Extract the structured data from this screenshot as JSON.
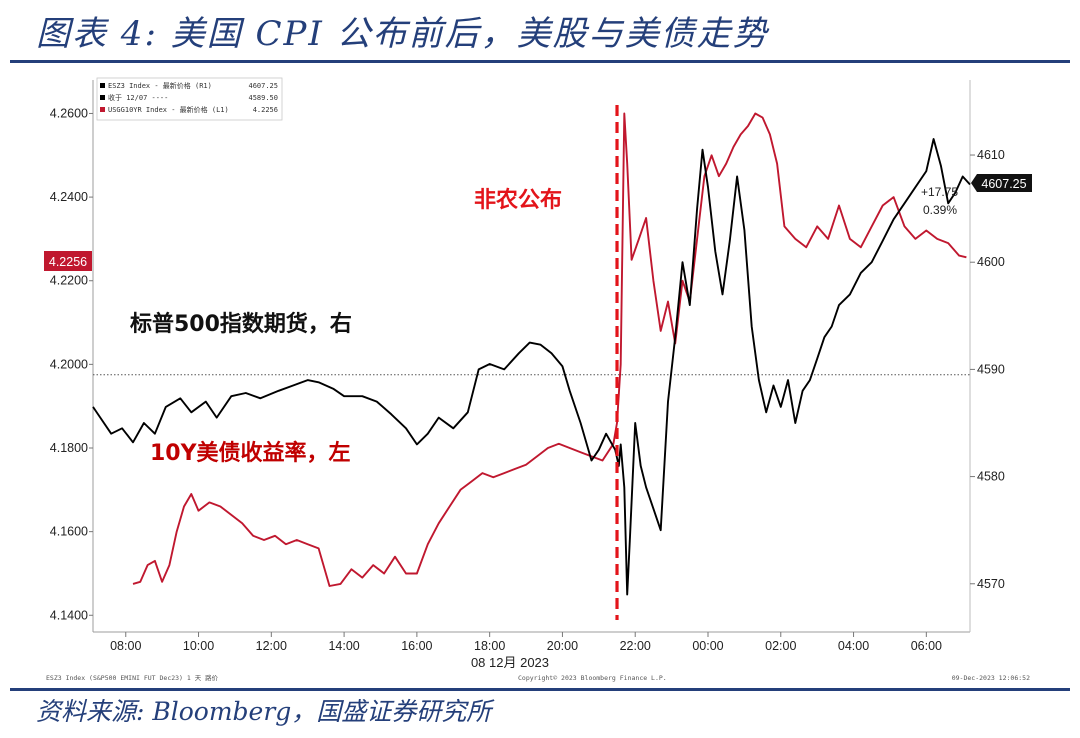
{
  "title": "图表 4:  美国 CPI 公布前后，美股与美债走势",
  "source": "资料来源:  Bloomberg，国盛证券研究所",
  "colors": {
    "navy": "#243f7a",
    "es": "#000000",
    "yield": "#c0182f",
    "marker": "#e3141a"
  },
  "legend": {
    "rows": [
      {
        "label": "ESZ3 Index - 最新价格 (R1)",
        "value": "4607.25",
        "color": "#000000"
      },
      {
        "label": "收于 12/07 ----",
        "value": "4589.50",
        "color": "#000000"
      },
      {
        "label": "USGG10YR Index - 最新价格 (L1)",
        "value": "4.2256",
        "color": "#c0182f"
      }
    ]
  },
  "annotations": {
    "es_label": "标普500指数期货，右",
    "yield_label": "10Y美债收益率，左",
    "event_label": "非农公布",
    "change_abs": "+17.75",
    "change_pct": "0.39%",
    "last_es": "4607.25",
    "last_yield": "4.2256"
  },
  "footer": {
    "left": "ESZ3 Index (S&P500 EMINI FUT  Dec23) 1 天  路价",
    "center": "Copyright© 2023 Bloomberg Finance L.P.",
    "right": "09-Dec-2023 12:06:52"
  },
  "chart_data": {
    "type": "line",
    "xlabel": "08 12月 2023",
    "x_ticks": [
      "08:00",
      "10:00",
      "12:00",
      "14:00",
      "16:00",
      "18:00",
      "20:00",
      "22:00",
      "00:00",
      "02:00",
      "04:00",
      "06:00"
    ],
    "left_axis": {
      "ticks": [
        "4.2600",
        "4.2400",
        "4.2200",
        "4.2000",
        "4.1800",
        "4.1600",
        "4.1400"
      ],
      "ylim": [
        4.136,
        4.268
      ]
    },
    "right_axis": {
      "ticks": [
        "4610",
        "4600",
        "4590",
        "4580",
        "4570"
      ],
      "ylim": [
        4565.5,
        4617
      ]
    },
    "reference_line": {
      "axis": "right",
      "value": 4589.5,
      "style": "dotted"
    },
    "event_marker": {
      "x": "21:30",
      "label": "非农公布"
    },
    "x_hours_range": [
      7.1,
      31.2
    ],
    "series": [
      {
        "name": "ESZ3 Index",
        "axis": "right",
        "points": [
          [
            7.1,
            4586.5
          ],
          [
            7.3,
            4585.5
          ],
          [
            7.6,
            4584.0
          ],
          [
            7.9,
            4584.5
          ],
          [
            8.2,
            4583.2
          ],
          [
            8.5,
            4585.0
          ],
          [
            8.8,
            4584.0
          ],
          [
            9.1,
            4586.5
          ],
          [
            9.5,
            4587.3
          ],
          [
            9.8,
            4586.0
          ],
          [
            10.2,
            4587.0
          ],
          [
            10.5,
            4585.5
          ],
          [
            10.9,
            4587.5
          ],
          [
            11.3,
            4587.8
          ],
          [
            11.7,
            4587.3
          ],
          [
            12.2,
            4588.0
          ],
          [
            12.6,
            4588.5
          ],
          [
            13.0,
            4589.0
          ],
          [
            13.3,
            4588.8
          ],
          [
            13.7,
            4588.2
          ],
          [
            14.0,
            4587.5
          ],
          [
            14.5,
            4587.5
          ],
          [
            14.9,
            4587.0
          ],
          [
            15.3,
            4585.8
          ],
          [
            15.7,
            4584.5
          ],
          [
            16.0,
            4583.0
          ],
          [
            16.3,
            4584.0
          ],
          [
            16.6,
            4585.5
          ],
          [
            17.0,
            4584.5
          ],
          [
            17.4,
            4586.0
          ],
          [
            17.7,
            4590.0
          ],
          [
            18.0,
            4590.5
          ],
          [
            18.4,
            4590.0
          ],
          [
            18.8,
            4591.5
          ],
          [
            19.1,
            4592.5
          ],
          [
            19.4,
            4592.3
          ],
          [
            19.7,
            4591.5
          ],
          [
            20.0,
            4590.3
          ],
          [
            20.2,
            4588.0
          ],
          [
            20.5,
            4585.0
          ],
          [
            20.8,
            4581.5
          ],
          [
            21.0,
            4582.5
          ],
          [
            21.2,
            4584.0
          ],
          [
            21.45,
            4582.5
          ],
          [
            21.55,
            4581.0
          ],
          [
            21.6,
            4583.0
          ],
          [
            21.7,
            4579.0
          ],
          [
            21.78,
            4569.0
          ],
          [
            21.85,
            4574.0
          ],
          [
            22.0,
            4585.0
          ],
          [
            22.15,
            4581.0
          ],
          [
            22.3,
            4579.0
          ],
          [
            22.5,
            4577.0
          ],
          [
            22.7,
            4575.0
          ],
          [
            22.9,
            4587.0
          ],
          [
            23.1,
            4593.0
          ],
          [
            23.3,
            4600.0
          ],
          [
            23.5,
            4596.0
          ],
          [
            23.7,
            4605.0
          ],
          [
            23.85,
            4610.5
          ],
          [
            24.0,
            4607.0
          ],
          [
            24.2,
            4601.0
          ],
          [
            24.4,
            4597.0
          ],
          [
            24.6,
            4602.0
          ],
          [
            24.8,
            4608.0
          ],
          [
            25.0,
            4603.0
          ],
          [
            25.2,
            4594.0
          ],
          [
            25.4,
            4589.0
          ],
          [
            25.6,
            4586.0
          ],
          [
            25.8,
            4588.5
          ],
          [
            26.0,
            4586.5
          ],
          [
            26.2,
            4589.0
          ],
          [
            26.4,
            4585.0
          ],
          [
            26.6,
            4588.0
          ],
          [
            26.8,
            4589.0
          ],
          [
            27.0,
            4591.0
          ],
          [
            27.2,
            4593.0
          ],
          [
            27.4,
            4594.0
          ],
          [
            27.6,
            4596.0
          ],
          [
            27.9,
            4597.0
          ],
          [
            28.2,
            4599.0
          ],
          [
            28.5,
            4600.0
          ],
          [
            28.8,
            4602.0
          ],
          [
            29.1,
            4604.0
          ],
          [
            29.4,
            4605.5
          ],
          [
            29.7,
            4607.0
          ],
          [
            30.0,
            4608.5
          ],
          [
            30.2,
            4611.5
          ],
          [
            30.4,
            4609.0
          ],
          [
            30.6,
            4605.5
          ],
          [
            30.8,
            4606.5
          ],
          [
            31.0,
            4608.0
          ],
          [
            31.2,
            4607.25
          ]
        ]
      },
      {
        "name": "USGG10YR Index",
        "axis": "left",
        "points": [
          [
            8.2,
            4.1475
          ],
          [
            8.4,
            4.148
          ],
          [
            8.6,
            4.152
          ],
          [
            8.8,
            4.153
          ],
          [
            9.0,
            4.148
          ],
          [
            9.2,
            4.152
          ],
          [
            9.4,
            4.16
          ],
          [
            9.6,
            4.166
          ],
          [
            9.8,
            4.169
          ],
          [
            10.0,
            4.165
          ],
          [
            10.3,
            4.167
          ],
          [
            10.6,
            4.166
          ],
          [
            10.9,
            4.164
          ],
          [
            11.2,
            4.162
          ],
          [
            11.5,
            4.159
          ],
          [
            11.8,
            4.158
          ],
          [
            12.1,
            4.159
          ],
          [
            12.4,
            4.157
          ],
          [
            12.7,
            4.158
          ],
          [
            13.0,
            4.157
          ],
          [
            13.3,
            4.156
          ],
          [
            13.6,
            4.147
          ],
          [
            13.9,
            4.1475
          ],
          [
            14.2,
            4.151
          ],
          [
            14.5,
            4.149
          ],
          [
            14.8,
            4.152
          ],
          [
            15.1,
            4.15
          ],
          [
            15.4,
            4.154
          ],
          [
            15.7,
            4.15
          ],
          [
            16.0,
            4.15
          ],
          [
            16.3,
            4.157
          ],
          [
            16.6,
            4.162
          ],
          [
            16.9,
            4.166
          ],
          [
            17.2,
            4.17
          ],
          [
            17.5,
            4.172
          ],
          [
            17.8,
            4.174
          ],
          [
            18.1,
            4.173
          ],
          [
            18.4,
            4.174
          ],
          [
            18.7,
            4.175
          ],
          [
            19.0,
            4.176
          ],
          [
            19.3,
            4.178
          ],
          [
            19.6,
            4.18
          ],
          [
            19.9,
            4.181
          ],
          [
            20.2,
            4.18
          ],
          [
            20.5,
            4.179
          ],
          [
            20.8,
            4.178
          ],
          [
            21.1,
            4.177
          ],
          [
            21.4,
            4.181
          ],
          [
            21.5,
            4.186
          ],
          [
            21.6,
            4.2
          ],
          [
            21.7,
            4.26
          ],
          [
            21.78,
            4.248
          ],
          [
            21.9,
            4.225
          ],
          [
            22.1,
            4.23
          ],
          [
            22.3,
            4.235
          ],
          [
            22.5,
            4.22
          ],
          [
            22.7,
            4.208
          ],
          [
            22.9,
            4.215
          ],
          [
            23.1,
            4.205
          ],
          [
            23.3,
            4.22
          ],
          [
            23.5,
            4.215
          ],
          [
            23.7,
            4.23
          ],
          [
            23.9,
            4.245
          ],
          [
            24.1,
            4.25
          ],
          [
            24.3,
            4.245
          ],
          [
            24.5,
            4.248
          ],
          [
            24.7,
            4.252
          ],
          [
            24.9,
            4.255
          ],
          [
            25.1,
            4.257
          ],
          [
            25.3,
            4.26
          ],
          [
            25.5,
            4.259
          ],
          [
            25.7,
            4.255
          ],
          [
            25.9,
            4.248
          ],
          [
            26.1,
            4.233
          ],
          [
            26.4,
            4.23
          ],
          [
            26.7,
            4.228
          ],
          [
            27.0,
            4.233
          ],
          [
            27.3,
            4.23
          ],
          [
            27.6,
            4.238
          ],
          [
            27.9,
            4.23
          ],
          [
            28.2,
            4.228
          ],
          [
            28.5,
            4.233
          ],
          [
            28.8,
            4.238
          ],
          [
            29.1,
            4.24
          ],
          [
            29.4,
            4.233
          ],
          [
            29.7,
            4.23
          ],
          [
            30.0,
            4.232
          ],
          [
            30.3,
            4.23
          ],
          [
            30.6,
            4.229
          ],
          [
            30.9,
            4.226
          ],
          [
            31.1,
            4.2256
          ]
        ]
      }
    ],
    "grid": false,
    "legend_position": "top-left"
  }
}
